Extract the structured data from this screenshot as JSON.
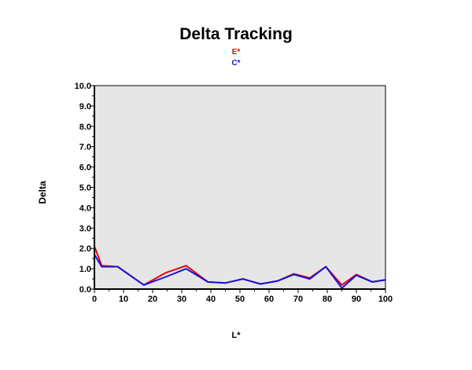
{
  "chart_data": {
    "type": "line",
    "title": "Delta Tracking",
    "xlabel": "L*",
    "ylabel": "Delta",
    "xlim": [
      0,
      100
    ],
    "ylim": [
      0,
      10
    ],
    "grid": false,
    "legend_placement": "top-center",
    "x_ticks": [
      "0",
      "10",
      "20",
      "30",
      "40",
      "50",
      "60",
      "70",
      "80",
      "90",
      "100"
    ],
    "y_ticks": [
      "0.0",
      "1.0",
      "2.0",
      "3.0",
      "4.0",
      "5.0",
      "6.0",
      "7.0",
      "8.0",
      "9.0",
      "10.0"
    ],
    "series": [
      {
        "name": "E*",
        "color": "#e8000b",
        "x": [
          0,
          2.5,
          8,
          17,
          24.5,
          31.5,
          39,
          45,
          51,
          57,
          63,
          68.5,
          74,
          79.5,
          85,
          90,
          95.5,
          100
        ],
        "y": [
          2.1,
          1.15,
          1.1,
          0.2,
          0.8,
          1.15,
          0.35,
          0.3,
          0.5,
          0.25,
          0.4,
          0.75,
          0.55,
          1.1,
          0.2,
          0.72,
          0.35,
          0.45
        ]
      },
      {
        "name": "C*",
        "color": "#1515d8",
        "x": [
          0,
          2.5,
          8,
          17,
          24.5,
          31.5,
          39,
          45,
          51,
          57,
          63,
          68.5,
          74,
          79.5,
          85,
          90,
          95.5,
          100
        ],
        "y": [
          1.7,
          1.1,
          1.1,
          0.2,
          0.6,
          1.0,
          0.35,
          0.3,
          0.5,
          0.25,
          0.4,
          0.72,
          0.5,
          1.1,
          0.05,
          0.68,
          0.35,
          0.45
        ]
      }
    ]
  },
  "colors": {
    "plot_background": "#e6e6e6",
    "axis": "#000000"
  }
}
